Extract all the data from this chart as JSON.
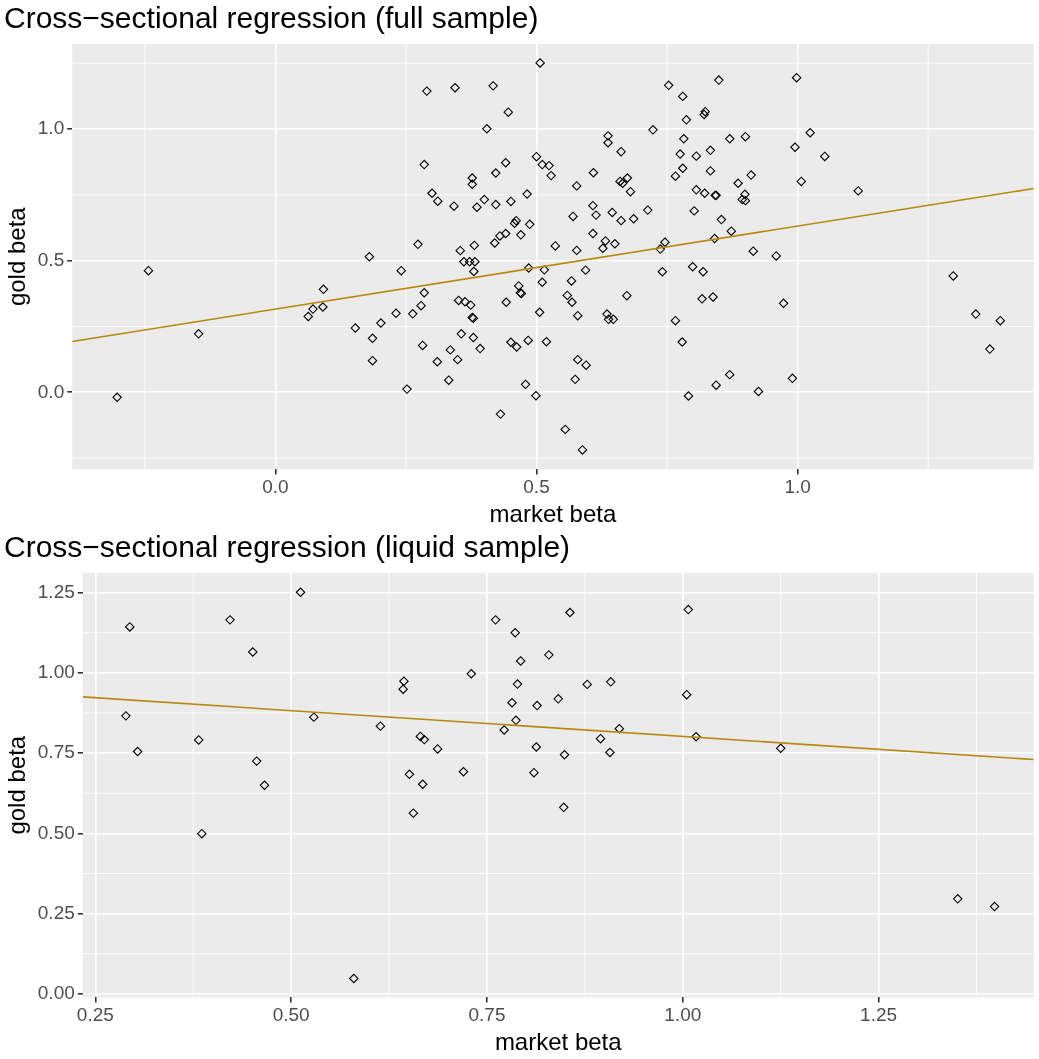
{
  "chart_data": [
    {
      "type": "scatter",
      "title": "Cross−sectional regression (full sample)",
      "xlabel": "market beta",
      "ylabel": "gold beta",
      "xlim": [
        -0.389,
        1.452
      ],
      "ylim": [
        -0.293,
        1.323
      ],
      "xticks": [
        {
          "value": 0,
          "label": "0.0"
        },
        {
          "value": 0.5,
          "label": "0.5"
        },
        {
          "value": 1,
          "label": "1.0"
        }
      ],
      "yticks": [
        {
          "value": 0,
          "label": "0.0"
        },
        {
          "value": 0.5,
          "label": "0.5"
        },
        {
          "value": 1,
          "label": "1.0"
        }
      ],
      "grid": true,
      "legend": false,
      "series": [
        {
          "marker": "diamond",
          "color": "#000000",
          "x": [
            -0.303,
            -0.243,
            -0.147,
            0.063,
            0.072,
            0.092,
            0.091,
            0.153,
            0.18,
            0.186,
            0.186,
            0.202,
            0.231,
            0.241,
            0.252,
            0.263,
            0.507,
            0.29,
            0.344,
            0.417,
            0.446,
            0.405,
            0.285,
            0.3,
            0.311,
            0.342,
            0.377,
            0.377,
            0.386,
            0.4,
            0.422,
            0.441,
            0.422,
            0.451,
            0.482,
            0.5,
            0.511,
            0.524,
            0.528,
            0.458,
            0.461,
            0.487,
            0.42,
            0.43,
            0.441,
            0.47,
            0.273,
            0.354,
            0.381,
            0.361,
            0.372,
            0.382,
            0.38,
            0.485,
            0.515,
            0.511,
            0.285,
            0.279,
            0.351,
            0.363,
            0.374,
            0.377,
            0.379,
            0.442,
            0.466,
            0.469,
            0.471,
            0.506,
            0.519,
            0.484,
            0.451,
            0.462,
            0.356,
            0.379,
            0.392,
            0.282,
            0.335,
            0.349,
            0.31,
            0.332,
            0.479,
            0.499,
            0.431,
            0.555,
            0.588,
            0.574,
            0.579,
            0.595,
            0.579,
            0.567,
            0.559,
            0.568,
            0.594,
            0.577,
            0.536,
            0.57,
            0.577,
            0.609,
            0.608,
            0.614,
            0.608,
            0.632,
            0.627,
            0.65,
            0.637,
            0.637,
            0.662,
            0.645,
            0.662,
            0.66,
            0.665,
            0.674,
            0.68,
            0.686,
            0.635,
            0.638,
            0.647,
            0.673,
            0.713,
            0.723,
            0.753,
            0.78,
            0.787,
            0.782,
            0.823,
            0.821,
            0.849,
            0.87,
            0.775,
            0.806,
            0.833,
            0.78,
            0.766,
            0.833,
            0.806,
            0.822,
            0.842,
            0.844,
            0.802,
            0.854,
            0.873,
            0.841,
            0.746,
            0.737,
            0.741,
            0.799,
            0.819,
            0.817,
            0.838,
            0.766,
            0.779,
            0.791,
            0.844,
            0.87,
            0.9,
            0.886,
            0.911,
            0.899,
            0.894,
            0.9,
            0.915,
            0.959,
            0.973,
            0.925,
            0.99,
            0.998,
            0.995,
            1.024,
            1.052,
            1.007,
            1.116,
            1.298,
            1.341,
            1.388,
            1.368
          ],
          "values": [
            -0.019,
            0.462,
            0.222,
            0.288,
            0.316,
            0.391,
            0.324,
            0.244,
            0.515,
            0.205,
            0.12,
            0.263,
            0.3,
            0.462,
            0.012,
            0.298,
            1.251,
            1.144,
            1.157,
            1.164,
            1.064,
            1.001,
            0.865,
            0.756,
            0.726,
            0.707,
            0.814,
            0.79,
            0.703,
            0.732,
            0.833,
            0.872,
            0.713,
            0.725,
            0.753,
            0.895,
            0.865,
            0.861,
            0.823,
            0.642,
            0.652,
            0.638,
            0.567,
            0.594,
            0.603,
            0.598,
            0.562,
            0.538,
            0.558,
            0.496,
            0.496,
            0.496,
            0.459,
            0.472,
            0.465,
            0.418,
            0.378,
            0.329,
            0.349,
            0.344,
            0.331,
            0.284,
            0.281,
            0.342,
            0.404,
            0.378,
            0.375,
            0.304,
            0.192,
            0.197,
            0.19,
            0.172,
            0.222,
            0.208,
            0.166,
            0.178,
            0.161,
            0.124,
            0.116,
            0.046,
            0.03,
            -0.013,
            -0.083,
            -0.141,
            -0.219,
            0.049,
            0.124,
            0.103,
            0.291,
            0.423,
            0.368,
            0.342,
            0.464,
            0.539,
            0.556,
            0.668,
            0.784,
            0.834,
            0.709,
            0.673,
            0.603,
            0.575,
            0.547,
            0.564,
            0.974,
            0.948,
            0.914,
            0.683,
            0.652,
            0.801,
            0.794,
            0.814,
            0.762,
            0.659,
            0.297,
            0.277,
            0.277,
            0.367,
            0.692,
            0.997,
            1.166,
            1.124,
            1.035,
            0.963,
            1.066,
            1.055,
            1.186,
            0.963,
            0.905,
            0.897,
            0.919,
            0.851,
            0.821,
            0.841,
            0.769,
            0.756,
            0.748,
            0.748,
            0.689,
            0.656,
            0.612,
            0.584,
            0.57,
            0.544,
            0.458,
            0.477,
            0.458,
            0.355,
            0.362,
            0.272,
            0.191,
            -0.014,
            0.027,
            0.067,
            0.971,
            0.794,
            0.825,
            0.752,
            0.732,
            0.728,
            0.536,
            0.518,
            0.338,
            0.003,
            0.053,
            1.195,
            0.931,
            0.986,
            0.896,
            0.801,
            0.765,
            0.442,
            0.297,
            0.272,
            0.164
          ]
        },
        {
          "type": "line",
          "color": "#b8860b",
          "x": [
            -0.389,
            1.452
          ],
          "values": [
            0.193,
            0.774
          ]
        }
      ]
    },
    {
      "type": "scatter",
      "title": "Cross−sectional regression (liquid sample)",
      "xlabel": "market beta",
      "ylabel": "gold beta",
      "xlim": [
        0.234,
        1.448
      ],
      "ylim": [
        -0.011,
        1.311
      ],
      "xticks": [
        {
          "value": 0.25,
          "label": "0.25"
        },
        {
          "value": 0.5,
          "label": "0.50"
        },
        {
          "value": 0.75,
          "label": "0.75"
        },
        {
          "value": 1,
          "label": "1.00"
        },
        {
          "value": 1.25,
          "label": "1.25"
        }
      ],
      "yticks": [
        {
          "value": 0,
          "label": "0.00"
        },
        {
          "value": 0.25,
          "label": "0.25"
        },
        {
          "value": 0.5,
          "label": "0.50"
        },
        {
          "value": 0.75,
          "label": "0.75"
        },
        {
          "value": 1,
          "label": "1.00"
        },
        {
          "value": 1.25,
          "label": "1.25"
        }
      ],
      "grid": true,
      "legend": false,
      "series": [
        {
          "marker": "diamond",
          "color": "#000000",
          "x": [
            0.294,
            0.289,
            0.304,
            0.382,
            0.386,
            0.422,
            0.451,
            0.456,
            0.466,
            0.512,
            0.529,
            0.58,
            0.614,
            0.644,
            0.643,
            0.665,
            0.67,
            0.687,
            0.651,
            0.668,
            0.656,
            0.72,
            0.73,
            0.761,
            0.786,
            0.793,
            0.789,
            0.782,
            0.787,
            0.772,
            0.814,
            0.813,
            0.81,
            0.856,
            0.829,
            0.841,
            0.849,
            0.848,
            0.878,
            0.908,
            0.895,
            0.907,
            0.919,
            1.007,
            1.005,
            1.017,
            1.125,
            1.351,
            1.398
          ],
          "values": [
            1.143,
            0.866,
            0.755,
            0.791,
            0.499,
            1.165,
            1.065,
            0.725,
            0.65,
            1.251,
            0.862,
            0.048,
            0.834,
            0.974,
            0.949,
            0.802,
            0.792,
            0.763,
            0.684,
            0.653,
            0.563,
            0.692,
            0.997,
            1.165,
            1.125,
            1.037,
            0.965,
            0.907,
            0.852,
            0.822,
            0.898,
            0.769,
            0.689,
            1.188,
            1.056,
            0.919,
            0.745,
            0.581,
            0.964,
            0.972,
            0.795,
            0.752,
            0.826,
            1.197,
            0.932,
            0.801,
            0.765,
            0.296,
            0.272
          ]
        },
        {
          "type": "line",
          "color": "#b8860b",
          "x": [
            0.234,
            1.448
          ],
          "values": [
            0.925,
            0.73
          ]
        }
      ]
    }
  ]
}
